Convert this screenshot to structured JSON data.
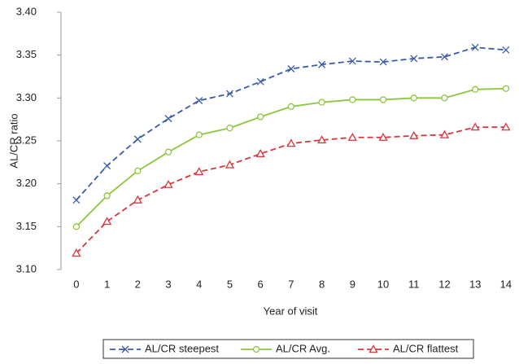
{
  "chart_data": {
    "type": "line",
    "x_label": "Year of visit",
    "y_label": "AL/CR ratio",
    "x": [
      0,
      1,
      2,
      3,
      4,
      5,
      6,
      7,
      8,
      9,
      10,
      11,
      12,
      13,
      14
    ],
    "xlim": [
      -0.5,
      14.4
    ],
    "xticks": [
      0,
      1,
      2,
      3,
      4,
      5,
      6,
      7,
      8,
      9,
      10,
      11,
      12,
      13,
      14
    ],
    "ylim": [
      3.1,
      3.4
    ],
    "yticks": [
      {
        "value": 3.1,
        "label": "3.10"
      },
      3.15,
      {
        "value": 3.2,
        "label": "3.20"
      },
      3.25,
      {
        "value": 3.3,
        "label": "3.30"
      },
      3.35,
      {
        "value": 3.4,
        "label": "3.40"
      }
    ],
    "grid": false,
    "legend": "bottom",
    "series": [
      {
        "name": "AL/CR steepest",
        "color": "#3a5ca8",
        "marker": "x",
        "dashed": true,
        "values": [
          3.181,
          3.221,
          3.252,
          3.276,
          3.297,
          3.305,
          3.319,
          3.334,
          3.339,
          3.343,
          3.342,
          3.346,
          3.348,
          3.359,
          3.356
        ]
      },
      {
        "name": "AL/CR Avg.",
        "color": "#8dc63f",
        "marker": "circle",
        "dashed": false,
        "values": [
          3.15,
          3.186,
          3.215,
          3.237,
          3.257,
          3.265,
          3.278,
          3.29,
          3.295,
          3.298,
          3.298,
          3.3,
          3.3,
          3.31,
          3.311
        ]
      },
      {
        "name": "AL/CR flattest",
        "color": "#d9363e",
        "marker": "triangle",
        "dashed": true,
        "values": [
          3.119,
          3.156,
          3.181,
          3.199,
          3.214,
          3.222,
          3.235,
          3.247,
          3.251,
          3.254,
          3.254,
          3.256,
          3.257,
          3.266,
          3.266
        ]
      }
    ]
  }
}
